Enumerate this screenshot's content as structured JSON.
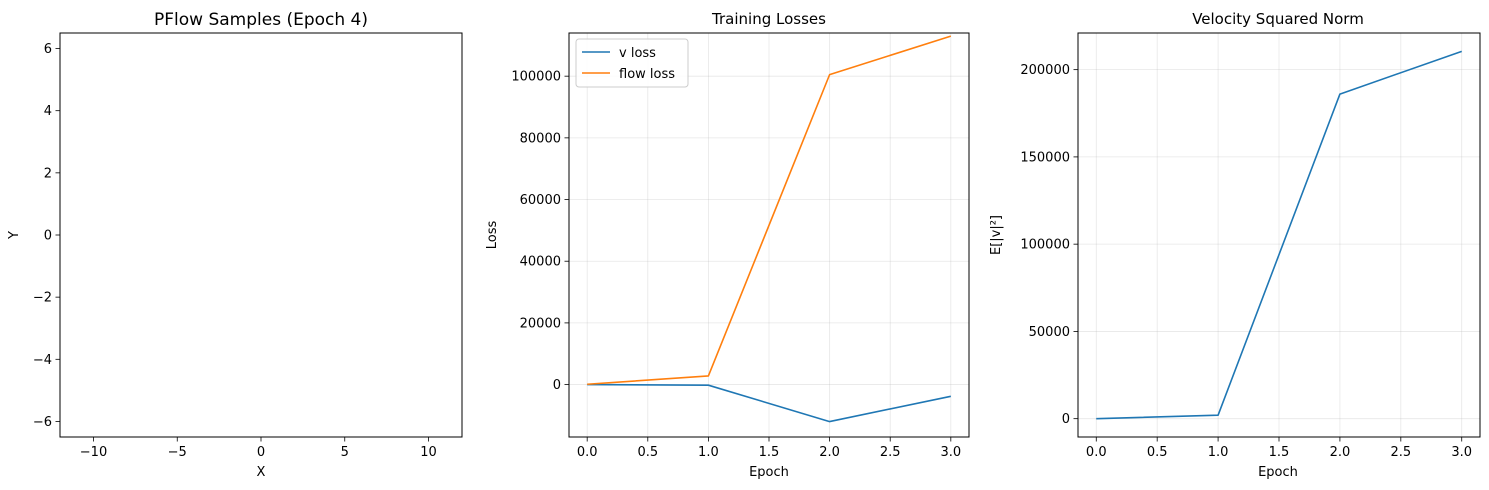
{
  "chart_data": [
    {
      "type": "scatter",
      "title": "PFlow Samples (Epoch 4)",
      "xlabel": "X",
      "ylabel": "Y",
      "xlim": [
        -12,
        12
      ],
      "ylim": [
        -6.5,
        6.5
      ],
      "xticks": [
        -10,
        -5,
        0,
        5,
        10
      ],
      "xtick_labels": [
        "−10",
        "−5",
        "0",
        "5",
        "10"
      ],
      "yticks": [
        -6,
        -4,
        -2,
        0,
        2,
        4,
        6
      ],
      "ytick_labels": [
        "−6",
        "−4",
        "−2",
        "0",
        "2",
        "4",
        "6"
      ],
      "grid": false,
      "series": []
    },
    {
      "type": "line",
      "title": "Training Losses",
      "xlabel": "Epoch",
      "ylabel": "Loss",
      "xlim": [
        -0.15,
        3.15
      ],
      "ylim": [
        -17000,
        114000
      ],
      "xticks": [
        0,
        0.5,
        1,
        1.5,
        2,
        2.5,
        3
      ],
      "xtick_labels": [
        "0.0",
        "0.5",
        "1.0",
        "1.5",
        "2.0",
        "2.5",
        "3.0"
      ],
      "yticks": [
        0,
        20000,
        40000,
        60000,
        80000,
        100000
      ],
      "ytick_labels": [
        "0",
        "20000",
        "40000",
        "60000",
        "80000",
        "100000"
      ],
      "grid": true,
      "legend": "top-left",
      "series": [
        {
          "name": "v loss",
          "color": "#1f77b4",
          "x": [
            0,
            1,
            2,
            3
          ],
          "y": [
            0,
            -200,
            -12000,
            -3800
          ]
        },
        {
          "name": "flow loss",
          "color": "#ff7f0e",
          "x": [
            0,
            1,
            2,
            3
          ],
          "y": [
            100,
            2800,
            100500,
            113000
          ]
        }
      ]
    },
    {
      "type": "line",
      "title": "Velocity Squared Norm",
      "xlabel": "Epoch",
      "ylabel": "E[|v|²]",
      "xlim": [
        -0.15,
        3.15
      ],
      "ylim": [
        -10500,
        221000
      ],
      "xticks": [
        0,
        0.5,
        1,
        1.5,
        2,
        2.5,
        3
      ],
      "xtick_labels": [
        "0.0",
        "0.5",
        "1.0",
        "1.5",
        "2.0",
        "2.5",
        "3.0"
      ],
      "yticks": [
        0,
        50000,
        100000,
        150000,
        200000
      ],
      "ytick_labels": [
        "0",
        "50000",
        "100000",
        "150000",
        "200000"
      ],
      "grid": true,
      "series": [
        {
          "color": "#1f77b4",
          "x": [
            0,
            1,
            2,
            3
          ],
          "y": [
            0,
            2000,
            186000,
            210500
          ]
        }
      ]
    }
  ]
}
